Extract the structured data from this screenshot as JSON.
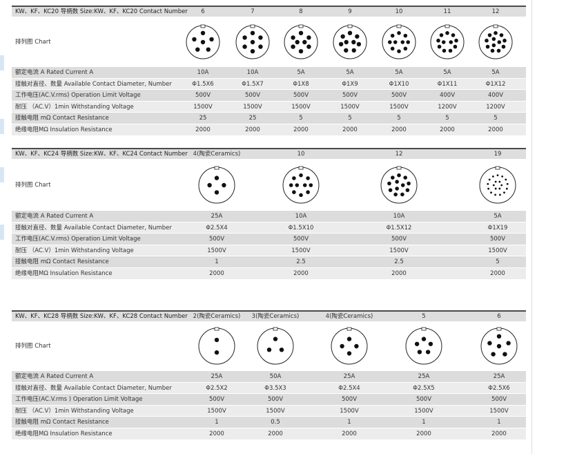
{
  "tables": [
    {
      "header": {
        "label": "KW、KF、KC20 导柄数 Size:KW、KF、KC20 Contact Number",
        "columns": [
          "6",
          "7",
          "8",
          "9",
          "10",
          "11",
          "12"
        ]
      },
      "chart_label": "排列图 Chart",
      "rows": [
        {
          "label": "额定电流 A  Rated Current A",
          "values": [
            "10A",
            "10A",
            "5A",
            "5A",
            "5A",
            "5A",
            "5A"
          ]
        },
        {
          "label": "接触对直径、数量  Available Contact Diameter,  Number",
          "values": [
            "Φ1.5X6",
            "Φ1.5X7",
            "Φ1X8",
            "Φ1X9",
            "Φ1X10",
            "Φ1X11",
            "Φ1X12"
          ]
        },
        {
          "label": "工作电压(AC.V.rms) Operation Limit Voltage",
          "values": [
            "500V",
            "500V",
            "500V",
            "500V",
            "500V",
            "400V",
            "400V"
          ]
        },
        {
          "label": "耐压 （AC.V）1min  Withstanding Voltage",
          "values": [
            "1500V",
            "1500V",
            "1500V",
            "1500V",
            "1500V",
            "1200V",
            "1200V"
          ]
        },
        {
          "label": "接触电阻 mΩ  Contact Resistance",
          "values": [
            "25",
            "25",
            "5",
            "5",
            "5",
            "5",
            "5"
          ]
        },
        {
          "label": "绝缘电阻MΩ  Insulation Resistance",
          "values": [
            "2000",
            "2000",
            "2000",
            "2000",
            "2000",
            "2000",
            "2000"
          ]
        }
      ]
    },
    {
      "header": {
        "label": "KW、KF、KC24 导柄数 Size:KW、KF、KC24 Contact Number",
        "columns": [
          "4(陶瓷Ceramics)",
          "10",
          "12",
          "19"
        ]
      },
      "chart_label": "排列图 Chart",
      "rows": [
        {
          "label": "额定电流 A  Rated Current A",
          "values": [
            "25A",
            "10A",
            "10A",
            "5A"
          ]
        },
        {
          "label": "接触对直径、数量  Available Contact Diameter,  Number",
          "values": [
            "Φ2.5X4",
            "Φ1.5X10",
            "Φ1.5X12",
            "Φ1X19"
          ]
        },
        {
          "label": "工作电压(AC.V.rms) Operation Limit Voltage",
          "values": [
            "500V",
            "500V",
            "500V",
            "500V"
          ]
        },
        {
          "label": "耐压 （AC.V）1min  Withstanding Voltage",
          "values": [
            "1500V",
            "1500V",
            "1500V",
            "1500V"
          ]
        },
        {
          "label": "接触电阻 mΩ  Contact Resistance",
          "values": [
            "1",
            "2.5",
            "2.5",
            "5"
          ]
        },
        {
          "label": "绝缘电阻MΩ  Insulation Resistance",
          "values": [
            "2000",
            "2000",
            "2000",
            "2000"
          ]
        }
      ]
    },
    {
      "header": {
        "label": "KW、KF、KC28 导柄数 Size:KW、KF、KC28 Contact Number",
        "columns": [
          "2(陶瓷Ceramics)",
          "3(陶瓷Ceramics)",
          "4(陶瓷Ceramics)",
          "5",
          "6"
        ]
      },
      "chart_label": "排列图 Chart",
      "rows": [
        {
          "label": "额定电流 A  Rated Current A",
          "values": [
            "25A",
            "50A",
            "25A",
            "25A",
            "25A"
          ]
        },
        {
          "label": "接触对直径、数量  Available Contact Diameter,  Number",
          "values": [
            "Φ2.5X2",
            "Φ3.5X3",
            "Φ2.5X4",
            "Φ2.5X5",
            "Φ2.5X6"
          ]
        },
        {
          "label": "工作电压(AC.V.rms ) Operation Limit Voltage",
          "values": [
            "500V",
            "500V",
            "500V",
            "500V",
            "500V"
          ]
        },
        {
          "label": "耐压 （AC.V）1min  Withstanding Voltage",
          "values": [
            "1500V",
            "1500V",
            "1500V",
            "1500V",
            "1500V"
          ]
        },
        {
          "label": "接触电阻 mΩ  Contact Resistance",
          "values": [
            "1",
            "0.5",
            "1",
            "1",
            "1"
          ]
        },
        {
          "label": "绝缘电阻MΩ  Insulation Resistance",
          "values": [
            "2000",
            "2000",
            "2000",
            "2000",
            "2000"
          ]
        }
      ]
    }
  ]
}
